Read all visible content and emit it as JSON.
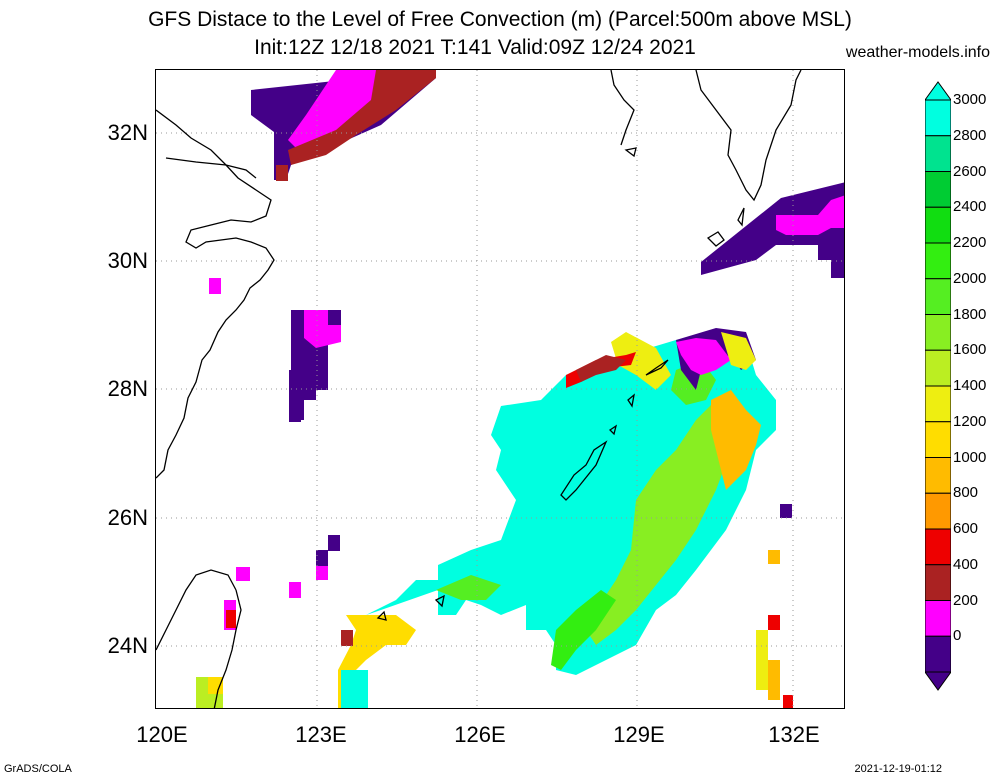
{
  "title": "GFS Distace to the Level of Free Convection (m) (Parcel:500m above MSL)",
  "subtitle": "Init:12Z 12/18 2021 T:141 Valid:09Z 12/24 2021",
  "site": "weather-models.info",
  "credit_left": "GrADS/COLA",
  "credit_right": "2021-12-19-01:12",
  "lat_labels": [
    "32N",
    "30N",
    "28N",
    "26N",
    "24N"
  ],
  "lon_labels": [
    "120E",
    "123E",
    "126E",
    "129E",
    "132E"
  ],
  "colorbar": {
    "labels": [
      "3000",
      "2800",
      "2600",
      "2400",
      "2200",
      "2000",
      "1800",
      "1600",
      "1400",
      "1200",
      "1000",
      "800",
      "600",
      "400",
      "200",
      "0"
    ],
    "colors": [
      "#00ffe0",
      "#00e38f",
      "#00cc33",
      "#11dd11",
      "#33ee11",
      "#55ee22",
      "#88ee22",
      "#bbee22",
      "#eeee11",
      "#ffdd00",
      "#ffbb00",
      "#ff9900",
      "#ee0000",
      "#aa2222",
      "#ff00ff",
      "#440088"
    ]
  }
}
